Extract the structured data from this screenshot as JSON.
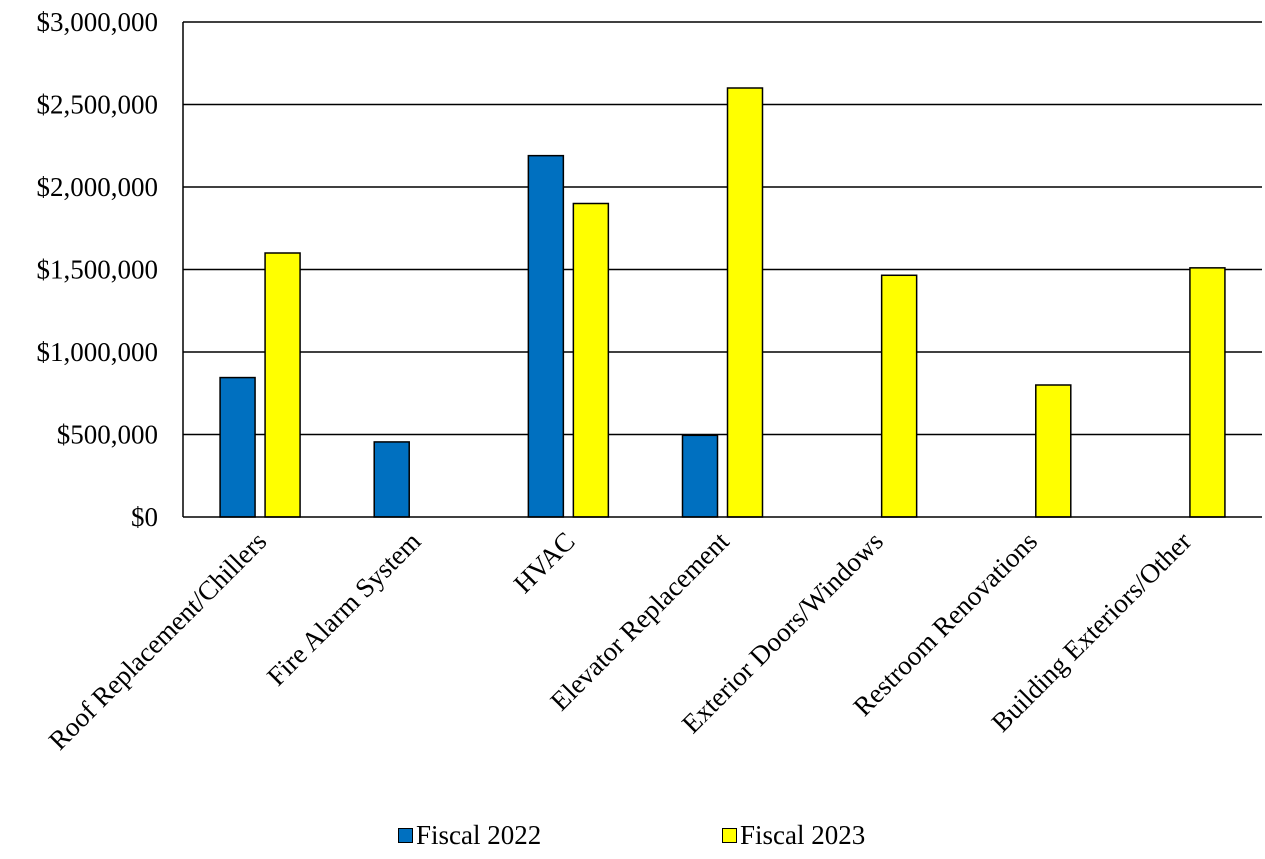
{
  "chart_data": {
    "type": "bar",
    "categories": [
      "Roof Replacement/Chillers",
      "Fire Alarm System",
      "HVAC",
      "Elevator Replacement",
      "Exterior Doors/Windows",
      "Restroom Renovations",
      "Building Exteriors/Other"
    ],
    "series": [
      {
        "name": "Fiscal 2022",
        "color": "#0070C0",
        "values": [
          845000,
          455000,
          2190000,
          495000,
          0,
          0,
          0
        ]
      },
      {
        "name": "Fiscal 2023",
        "color": "#FFFF00",
        "values": [
          1600000,
          0,
          1900000,
          2600000,
          1465000,
          800000,
          1510000
        ]
      }
    ],
    "ylim": [
      0,
      3000000
    ],
    "yticks": [
      0,
      500000,
      1000000,
      1500000,
      2000000,
      2500000,
      3000000
    ],
    "ytick_labels": [
      "$0",
      "$500,000",
      "$1,000,000",
      "$1,500,000",
      "$2,000,000",
      "$2,500,000",
      "$3,000,000"
    ],
    "grid": true,
    "legend_position": "bottom",
    "title": "",
    "xlabel": "",
    "ylabel": ""
  }
}
